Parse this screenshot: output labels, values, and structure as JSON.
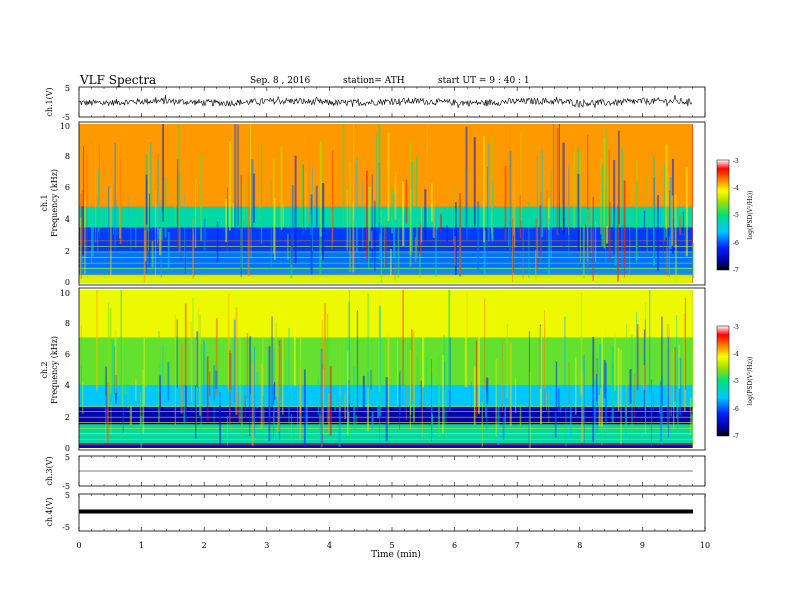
{
  "header": {
    "title": "VLF  Spectra",
    "date": "Sep. 8  , 2016",
    "station": "station= ATH",
    "start": "start  UT =   9  : 40 : 1"
  },
  "chart_data": [
    {
      "type": "line",
      "panel": "ch1-waveform",
      "ylabel": "ch.1(V)",
      "ylim": [
        -5,
        5
      ],
      "yticks": [
        "5",
        "-5"
      ],
      "xlim": [
        0,
        10
      ],
      "note_values": "noisy waveform oscillating roughly between -1.5 and +1.5 V with spikes to about +/-2.5 V"
    },
    {
      "type": "heatmap",
      "panel": "ch1-spectrogram",
      "ylabel": "ch.1\nFrequency  (kHz)",
      "ylim": [
        0,
        10
      ],
      "yticks": [
        "0",
        "2",
        "4",
        "6",
        "8",
        "10"
      ],
      "xlim": [
        0,
        9.8
      ],
      "bands": [
        {
          "from_khz": 0,
          "to_khz": 0.5,
          "level": -4.3
        },
        {
          "from_khz": 0.5,
          "to_khz": 1.0,
          "level": -5.8
        },
        {
          "from_khz": 1.0,
          "to_khz": 2.0,
          "level": -5.9
        },
        {
          "from_khz": 2.0,
          "to_khz": 3.5,
          "level": -6.1
        },
        {
          "from_khz": 3.5,
          "to_khz": 4.8,
          "level": -5.2
        },
        {
          "from_khz": 4.8,
          "to_khz": 10,
          "level": -3.8
        }
      ],
      "colorbar": {
        "label": "log(PSD(V²/Hz))",
        "ticks": [
          "-3",
          "-4",
          "-5",
          "-6",
          "-7"
        ],
        "range": [
          -7,
          -3
        ]
      }
    },
    {
      "type": "heatmap",
      "panel": "ch2-spectrogram",
      "ylabel": "ch.2\nFrequency  (kHz)",
      "ylim": [
        0,
        10
      ],
      "yticks": [
        "0",
        "2",
        "4",
        "6",
        "8",
        "10"
      ],
      "xlim": [
        0,
        9.8
      ],
      "bands": [
        {
          "from_khz": 0,
          "to_khz": 0.3,
          "level": -6.5
        },
        {
          "from_khz": 0.3,
          "to_khz": 1.5,
          "level": -5.2
        },
        {
          "from_khz": 1.5,
          "to_khz": 2.6,
          "level": -6.6
        },
        {
          "from_khz": 2.6,
          "to_khz": 4.0,
          "level": -5.6
        },
        {
          "from_khz": 4.0,
          "to_khz": 7.0,
          "level": -4.7
        },
        {
          "from_khz": 7.0,
          "to_khz": 10,
          "level": -4.2
        }
      ],
      "colorbar": {
        "label": "log(PSD(V²/Hz))",
        "ticks": [
          "-3",
          "-4",
          "-5",
          "-6",
          "-7"
        ],
        "range": [
          -7,
          -3
        ]
      }
    },
    {
      "type": "line",
      "panel": "ch3-waveform",
      "ylabel": "ch.3(V)",
      "ylim": [
        -5,
        5
      ],
      "yticks": [
        "5",
        "-5"
      ],
      "xlim": [
        0,
        10
      ],
      "note_values": "flat line near 0 V"
    },
    {
      "type": "line",
      "panel": "ch4-waveform",
      "ylabel": "ch.4(V)",
      "ylim": [
        -5,
        5
      ],
      "yticks": [
        "5",
        "-5"
      ],
      "xlim": [
        0,
        10
      ],
      "note_values": "thick flat line near 0 V"
    }
  ],
  "xaxis": {
    "label": "Time  (min)",
    "ticks": [
      "0",
      "1",
      "2",
      "3",
      "4",
      "5",
      "6",
      "7",
      "8",
      "9",
      "10"
    ]
  }
}
